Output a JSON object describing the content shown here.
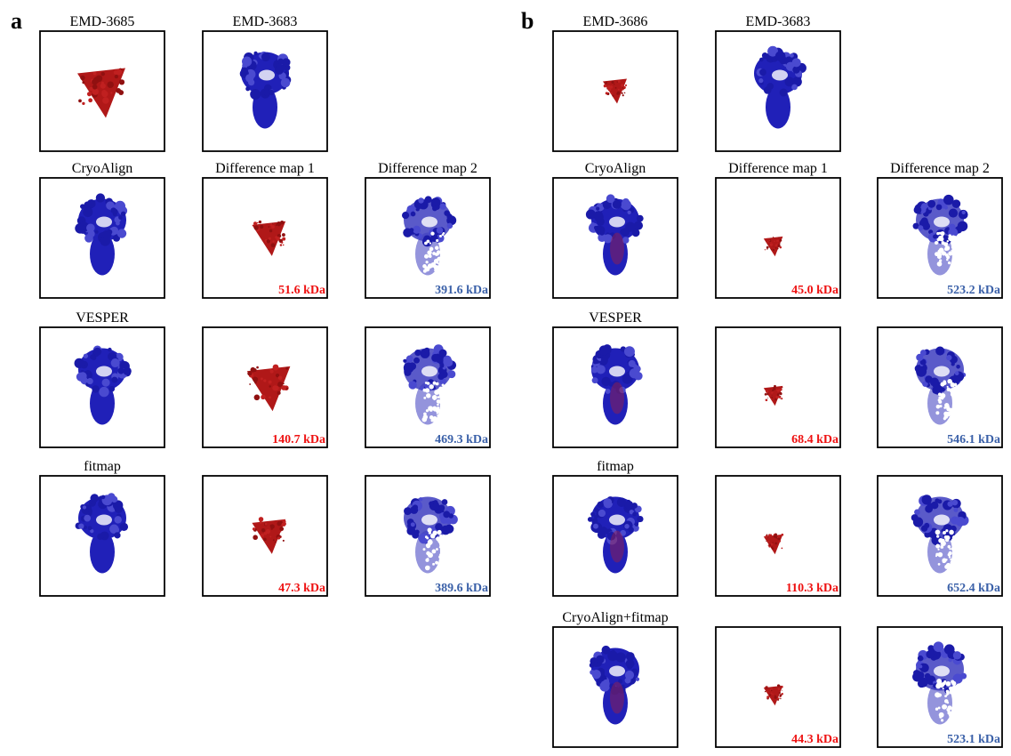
{
  "panels": [
    {
      "label": "a",
      "rows": [
        {
          "cells": [
            {
              "title": "EMD-3685"
            },
            {
              "title": "EMD-3683"
            }
          ]
        },
        {
          "cells": [
            {
              "title": "CryoAlign"
            },
            {
              "title": "Difference map 1",
              "mass": "51.6 kDa"
            },
            {
              "title": "Difference map 2",
              "mass": "391.6 kDa"
            }
          ]
        },
        {
          "cells": [
            {
              "title": "VESPER"
            },
            {
              "mass": "140.7 kDa"
            },
            {
              "mass": "469.3 kDa"
            }
          ]
        },
        {
          "cells": [
            {
              "title": "fitmap"
            },
            {
              "mass": "47.3 kDa"
            },
            {
              "mass": "389.6 kDa"
            }
          ]
        }
      ]
    },
    {
      "label": "b",
      "rows": [
        {
          "cells": [
            {
              "title": "EMD-3686"
            },
            {
              "title": "EMD-3683"
            }
          ]
        },
        {
          "cells": [
            {
              "title": "CryoAlign"
            },
            {
              "title": "Difference map 1",
              "mass": "45.0 kDa"
            },
            {
              "title": "Difference map 2",
              "mass": "523.2 kDa"
            }
          ]
        },
        {
          "cells": [
            {
              "title": "VESPER"
            },
            {
              "mass": "68.4 kDa"
            },
            {
              "mass": "546.1 kDa"
            }
          ]
        },
        {
          "cells": [
            {
              "title": "fitmap"
            },
            {
              "mass": "110.3 kDa"
            },
            {
              "mass": "652.4 kDa"
            }
          ]
        },
        {
          "cells": [
            {
              "title": "CryoAlign+fitmap"
            },
            {
              "mass": "44.3 kDa"
            },
            {
              "mass": "523.1 kDa"
            }
          ]
        }
      ]
    }
  ]
}
